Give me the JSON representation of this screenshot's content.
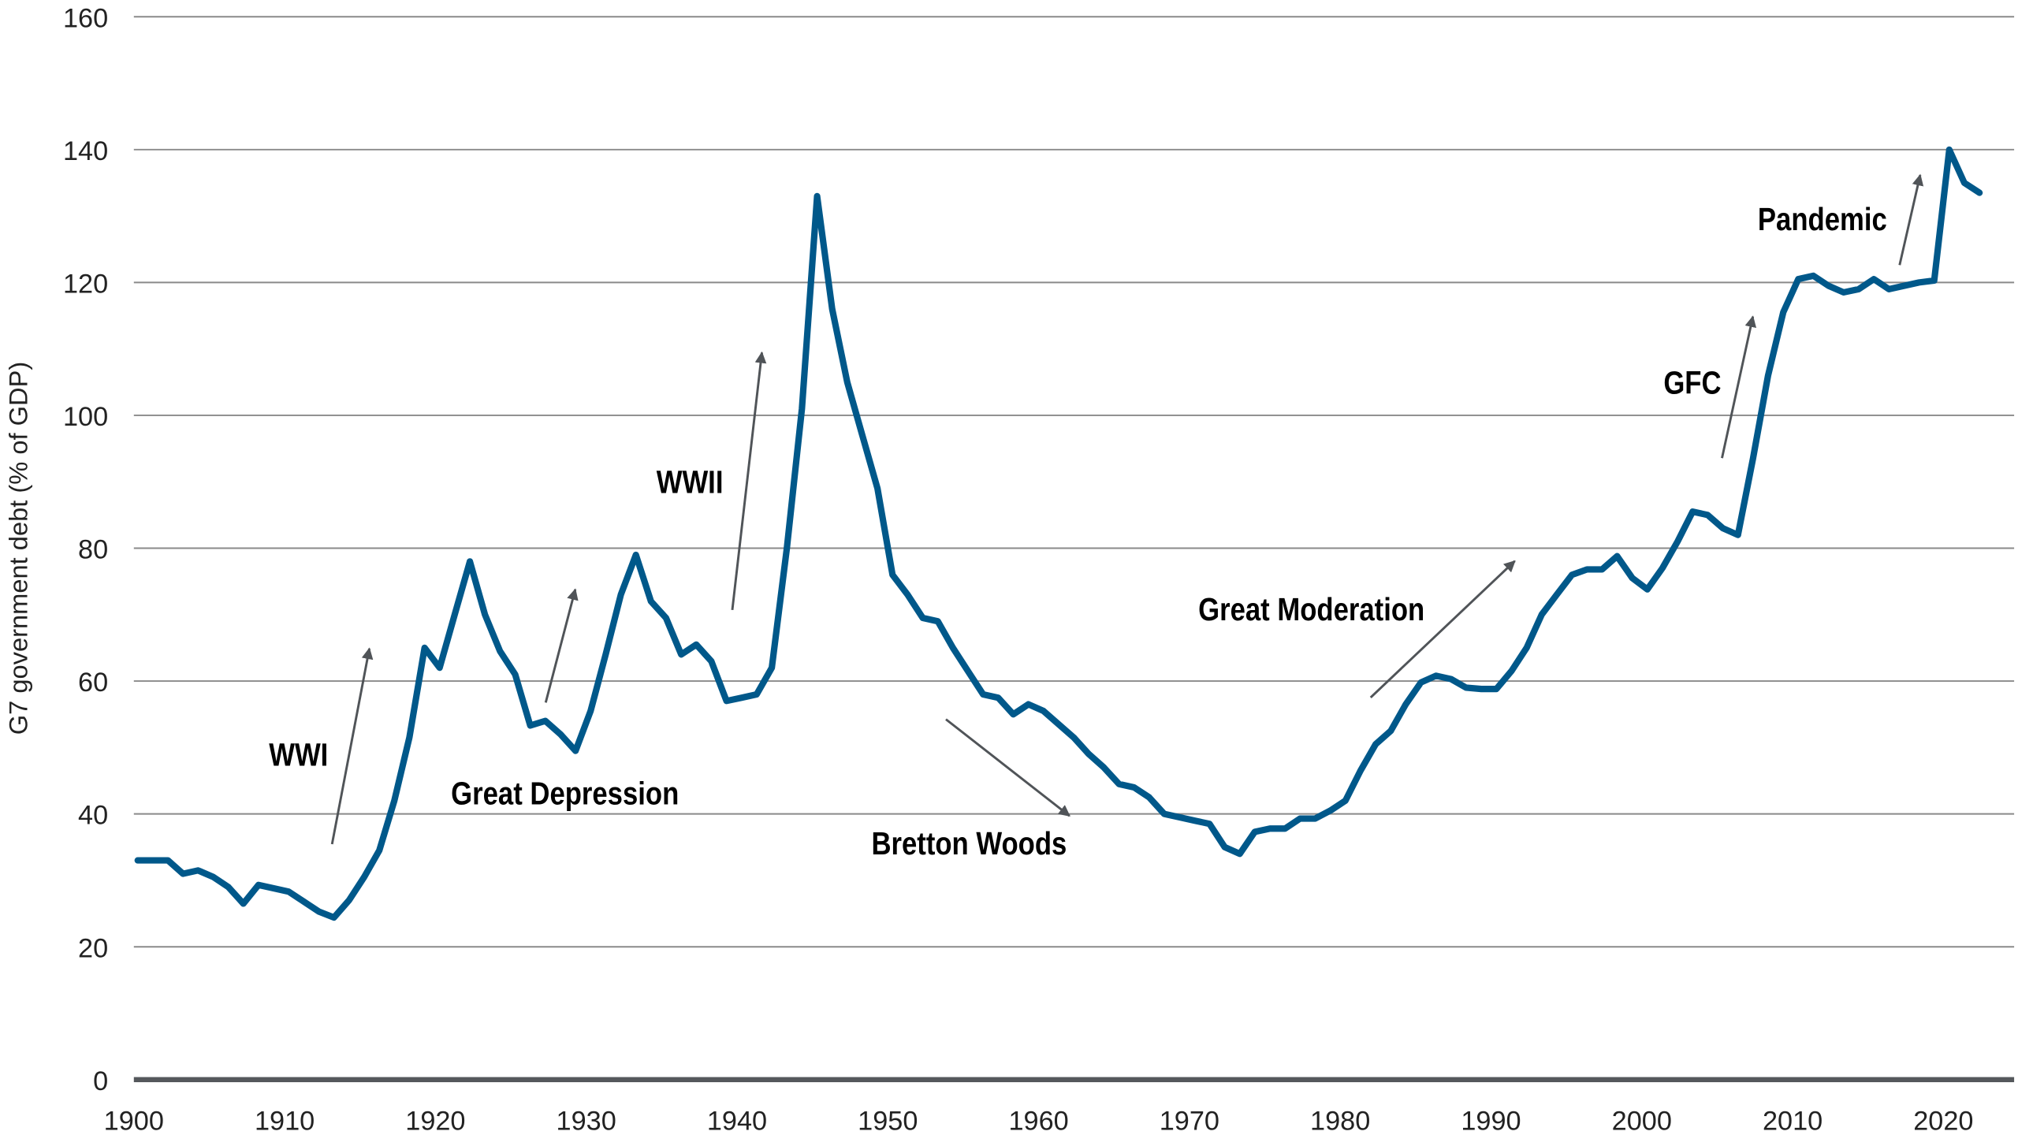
{
  "chart_data": {
    "type": "line",
    "title": "",
    "xlabel": "",
    "ylabel": "G7 government debt (% of GDP)",
    "xlim": [
      1900,
      2023
    ],
    "ylim": [
      0,
      160
    ],
    "x_ticks": [
      "1900",
      "1910",
      "1920",
      "1930",
      "1940",
      "1950",
      "1960",
      "1970",
      "1980",
      "1990",
      "2000",
      "2010",
      "2020"
    ],
    "y_ticks": [
      "0",
      "20",
      "40",
      "60",
      "80",
      "100",
      "120",
      "140",
      "160"
    ],
    "grid": "horizontal",
    "line_color": "#00588a",
    "series": [
      {
        "x": [
          1900,
          1901,
          1902,
          1903,
          1904,
          1905,
          1906,
          1907,
          1908,
          1909,
          1910,
          1911,
          1912,
          1913,
          1914,
          1915,
          1916,
          1917,
          1918,
          1919,
          1920,
          1921,
          1922,
          1923,
          1924,
          1925,
          1926,
          1927,
          1928,
          1929,
          1930,
          1931,
          1932,
          1933,
          1934,
          1935,
          1936,
          1937,
          1938,
          1939,
          1940,
          1941,
          1942,
          1943,
          1944,
          1945,
          1946,
          1947,
          1948,
          1949,
          1950,
          1951,
          1952,
          1953,
          1954,
          1955,
          1956,
          1957,
          1958,
          1959,
          1960,
          1961,
          1962,
          1963,
          1964,
          1965,
          1966,
          1967,
          1968,
          1969,
          1970,
          1971,
          1972,
          1973,
          1974,
          1975,
          1976,
          1977,
          1978,
          1979,
          1980,
          1981,
          1982,
          1983,
          1984,
          1985,
          1986,
          1987,
          1988,
          1989,
          1990,
          1991,
          1992,
          1993,
          1994,
          1995,
          1996,
          1997,
          1998,
          1999,
          2000,
          2001,
          2002,
          2003,
          2004,
          2005,
          2006,
          2007,
          2008,
          2009,
          2010,
          2011,
          2012,
          2013,
          2014,
          2015,
          2016,
          2017,
          2018,
          2019,
          2020,
          2021,
          2022
        ],
        "y": [
          33,
          33,
          33,
          31,
          31.5,
          30.5,
          29,
          26.5,
          29.3,
          28.8,
          28.3,
          26.8,
          25.3,
          24.4,
          27,
          30.5,
          34.5,
          42,
          51.5,
          65,
          62,
          70,
          78,
          70,
          64.5,
          61,
          53.3,
          54,
          52,
          49.5,
          55.5,
          64,
          73,
          79,
          72,
          69.5,
          64,
          65.5,
          63,
          57,
          57.5,
          58,
          62,
          80,
          101,
          133,
          116,
          105,
          97,
          89,
          76,
          73,
          69.5,
          69,
          65,
          61.5,
          58,
          57.5,
          55,
          56.5,
          55.5,
          53.5,
          51.5,
          49,
          47,
          44.5,
          44,
          42.5,
          40,
          39.5,
          39,
          38.5,
          35,
          34,
          37.3,
          37.8,
          37.8,
          39.3,
          39.3,
          40.5,
          42,
          46.5,
          50.5,
          52.5,
          56.5,
          59.8,
          60.8,
          60.3,
          59,
          58.8,
          58.8,
          61.5,
          65,
          70,
          73,
          76,
          76.8,
          76.8,
          78.8,
          75.5,
          73.8,
          77,
          81,
          85.5,
          85,
          83,
          82,
          93.5,
          106,
          115.5,
          120.5,
          121,
          119.5,
          118.5,
          119,
          120.5,
          119,
          119.5,
          120,
          120.3,
          140,
          135,
          133.5
        ]
      }
    ],
    "annotations": [
      {
        "label": "WWI",
        "direction": "up"
      },
      {
        "label": "Great Depression",
        "direction": "up"
      },
      {
        "label": "WWII",
        "direction": "up"
      },
      {
        "label": "Bretton Woods",
        "direction": "down"
      },
      {
        "label": "Great Moderation",
        "direction": "up"
      },
      {
        "label": "GFC",
        "direction": "up"
      },
      {
        "label": "Pandemic",
        "direction": "up"
      }
    ]
  }
}
